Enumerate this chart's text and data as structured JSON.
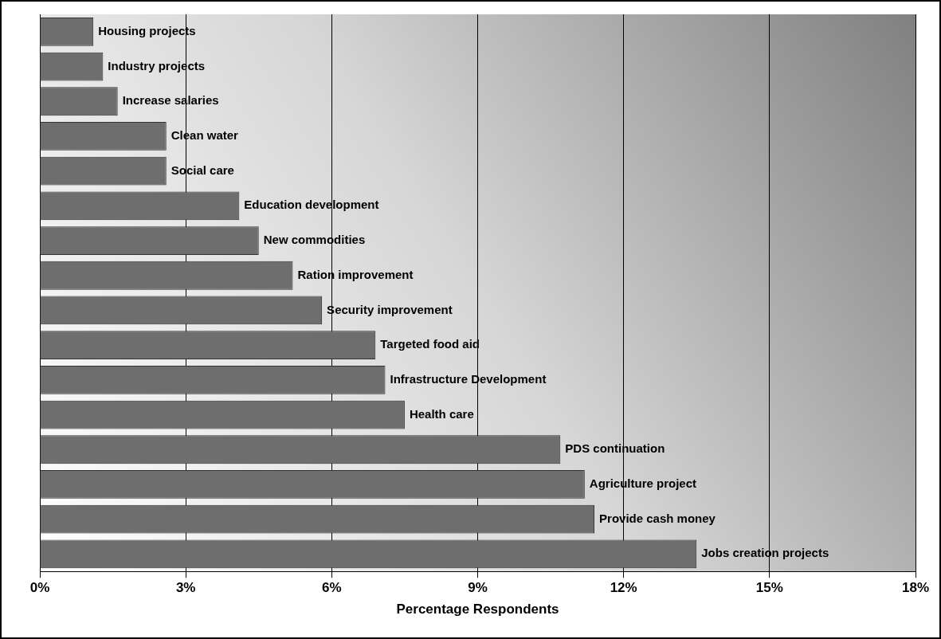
{
  "chart_data": {
    "type": "bar",
    "orientation": "horizontal",
    "xlabel": "Percentage Respondents",
    "categories": [
      "Housing projects",
      "Industry projects",
      "Increase salaries",
      "Clean water",
      "Social care",
      "Education development",
      "New commodities",
      "Ration improvement",
      "Security improvement",
      "Targeted food aid",
      "Infrastructure Development",
      "Health care",
      "PDS continuation",
      "Agriculture project",
      "Provide cash money",
      "Jobs creation projects"
    ],
    "values": [
      1.1,
      1.3,
      1.6,
      2.6,
      2.6,
      4.1,
      4.5,
      5.2,
      5.8,
      6.9,
      7.1,
      7.5,
      10.7,
      11.2,
      11.4,
      13.5
    ],
    "color": "#6e6e6e",
    "xlim": [
      0,
      18
    ],
    "xticks": [
      {
        "value": 0,
        "label": "0%"
      },
      {
        "value": 3,
        "label": "3%"
      },
      {
        "value": 6,
        "label": "6%"
      },
      {
        "value": 9,
        "label": "9%"
      },
      {
        "value": 12,
        "label": "12%"
      },
      {
        "value": 15,
        "label": "15%"
      },
      {
        "value": 18,
        "label": "18%"
      }
    ],
    "grid": "x",
    "legend": false
  }
}
